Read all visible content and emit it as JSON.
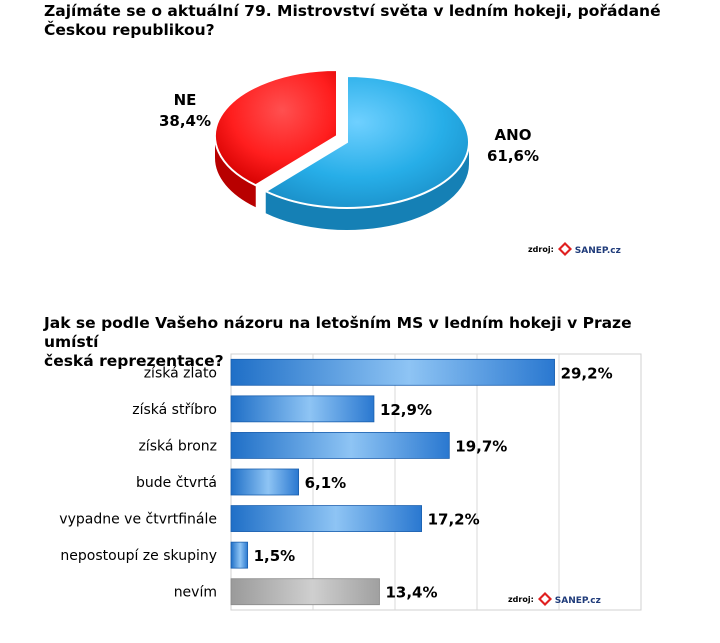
{
  "chart_data": [
    {
      "type": "pie",
      "title": "Zajímáte se o aktuální 79. Mistrovství světa v ledním hokeji, pořádané\nČeskou republikou?",
      "slices": [
        {
          "label": "ANO",
          "value": 61.6,
          "value_label": "61,6%",
          "color": "#27aee8"
        },
        {
          "label": "NE",
          "value": 38.4,
          "value_label": "38,4%",
          "color": "#ff1e1e"
        }
      ],
      "source_label": "zdroj:",
      "source_logo": "SANEP.cz"
    },
    {
      "type": "bar",
      "orientation": "horizontal",
      "title": "Jak se podle Vašeho názoru na letošním MS v ledním hokeji v Praze umístí\nčeská reprezentace?",
      "categories": [
        "získá zlato",
        "získá stříbro",
        "získá bronz",
        "bude čtvrtá",
        "vypadne ve čtvrtfinále",
        "nepostoupí ze skupiny",
        "nevím"
      ],
      "values": [
        29.2,
        12.9,
        19.7,
        6.1,
        17.2,
        1.5,
        13.4
      ],
      "value_labels": [
        "29,2%",
        "12,9%",
        "19,7%",
        "6,1%",
        "17,2%",
        "1,5%",
        "13,4%"
      ],
      "colors": [
        "#2b7fd4",
        "#2b7fd4",
        "#2b7fd4",
        "#2b7fd4",
        "#2b7fd4",
        "#2b7fd4",
        "#a9a9a9"
      ],
      "xlim": [
        0,
        37
      ],
      "grid": true,
      "source_label": "zdroj:",
      "source_logo": "SANEP.cz"
    }
  ]
}
